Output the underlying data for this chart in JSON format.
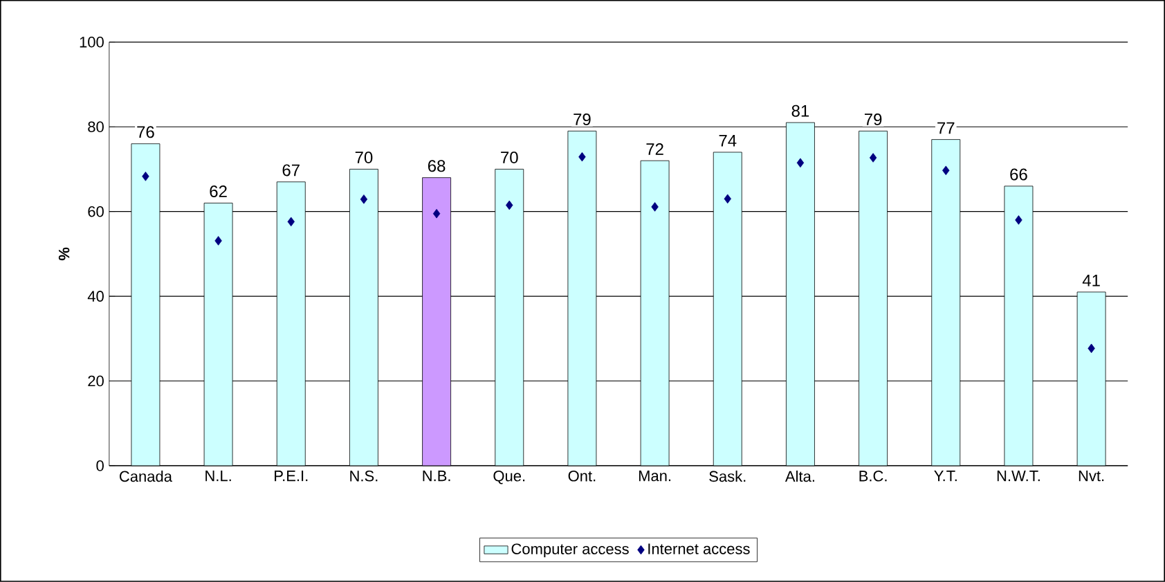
{
  "chart_data": {
    "type": "bar",
    "ylabel": "%",
    "categories": [
      "Canada",
      "N.L.",
      "P.E.I.",
      "N.S.",
      "N.B.",
      "Que.",
      "Ont.",
      "Man.",
      "Sask.",
      "Alta.",
      "B.C.",
      "Y.T.",
      "N.W.T.",
      "Nvt."
    ],
    "series": [
      {
        "name": "Computer access",
        "color": "#ccffff",
        "colors": [
          "#ccffff",
          "#ccffff",
          "#ccffff",
          "#ccffff",
          "#cc99ff",
          "#ccffff",
          "#ccffff",
          "#ccffff",
          "#ccffff",
          "#ccffff",
          "#ccffff",
          "#ccffff",
          "#ccffff",
          "#ccffff"
        ],
        "values": [
          76,
          62,
          67,
          70,
          68,
          70,
          79,
          72,
          74,
          81,
          79,
          77,
          66,
          41
        ],
        "value_labels": [
          "76",
          "62",
          "67",
          "70",
          "68",
          "70",
          "79",
          "72",
          "74",
          "81",
          "79",
          "77",
          "66",
          "41"
        ]
      },
      {
        "name": "Internet access",
        "type": "scatter",
        "color": "#000080",
        "marker": "diamond",
        "values": [
          68.3,
          53.1,
          57.6,
          62.9,
          59.5,
          61.5,
          72.9,
          61.1,
          63.0,
          71.5,
          72.7,
          69.7,
          58.0,
          27.7
        ]
      }
    ],
    "ylim": [
      0,
      100
    ],
    "yticks": [
      0,
      20,
      40,
      60,
      80,
      100
    ],
    "grid": "y",
    "legend": "bottom"
  }
}
